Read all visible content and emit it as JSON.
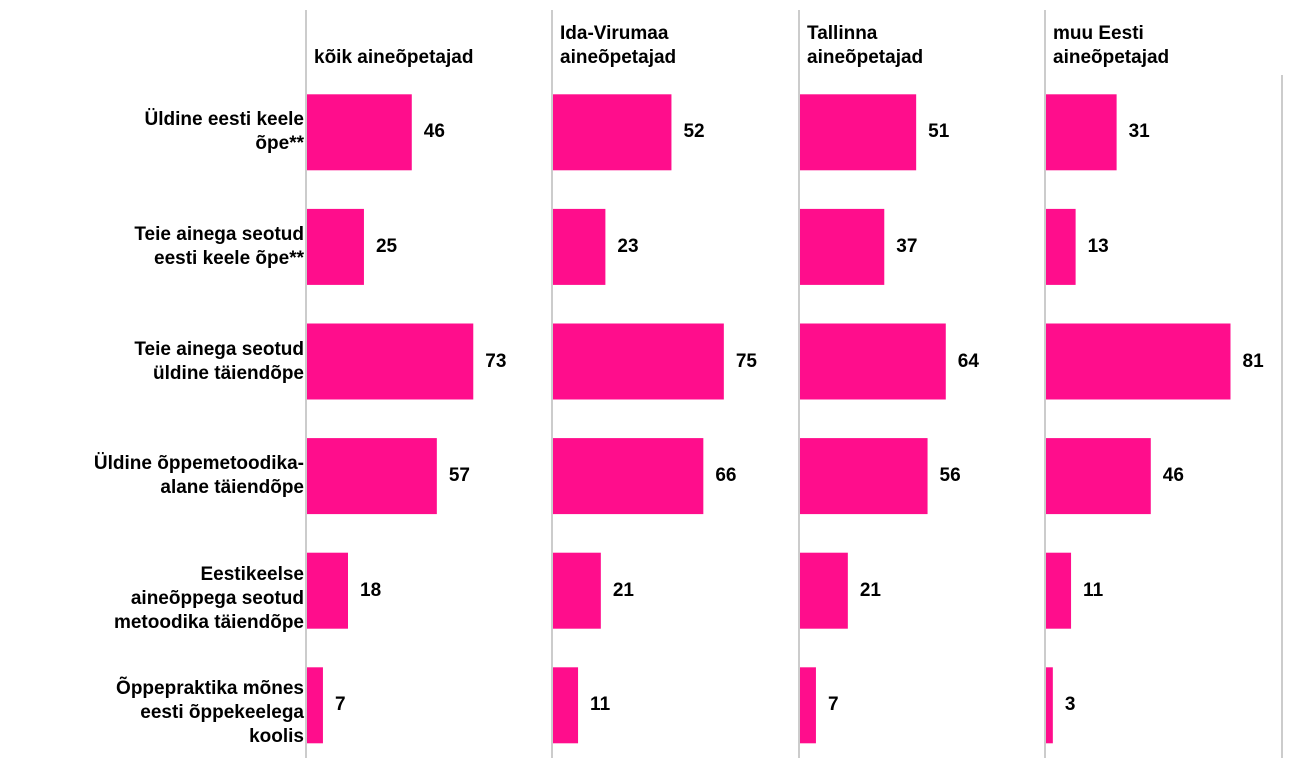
{
  "chart_data": {
    "type": "bar",
    "orientation": "horizontal",
    "categories": [
      "Üldine eesti keele\nõpe**",
      "Teie ainega seotud\neesti keele õpe**",
      "Teie ainega seotud\nüldine täiendõpe",
      "Üldine õppemetoodika-\nalane täiendõpe",
      "Eestikeelse\naineõppega seotud\nmetoodika täiendõpe",
      "Õppepraktika mõnes\neesti õppekeelega\nkoolis"
    ],
    "series": [
      {
        "name": "kõik aineõpetajad",
        "color": "#ff0d8c",
        "values": [
          46,
          25,
          73,
          57,
          18,
          7
        ]
      },
      {
        "name": "Ida-Virumaa\naineõpetajad",
        "color": "#ff0d8c",
        "values": [
          52,
          23,
          75,
          66,
          21,
          11
        ]
      },
      {
        "name": "Tallinna\naineõpetajad",
        "color": "#ff0d8c",
        "values": [
          51,
          37,
          64,
          56,
          21,
          7
        ]
      },
      {
        "name": "muu Eesti\naineõpetajad",
        "color": "#ff0d8c",
        "values": [
          31,
          13,
          81,
          46,
          11,
          3
        ]
      }
    ],
    "xlim": [
      0,
      108
    ]
  }
}
